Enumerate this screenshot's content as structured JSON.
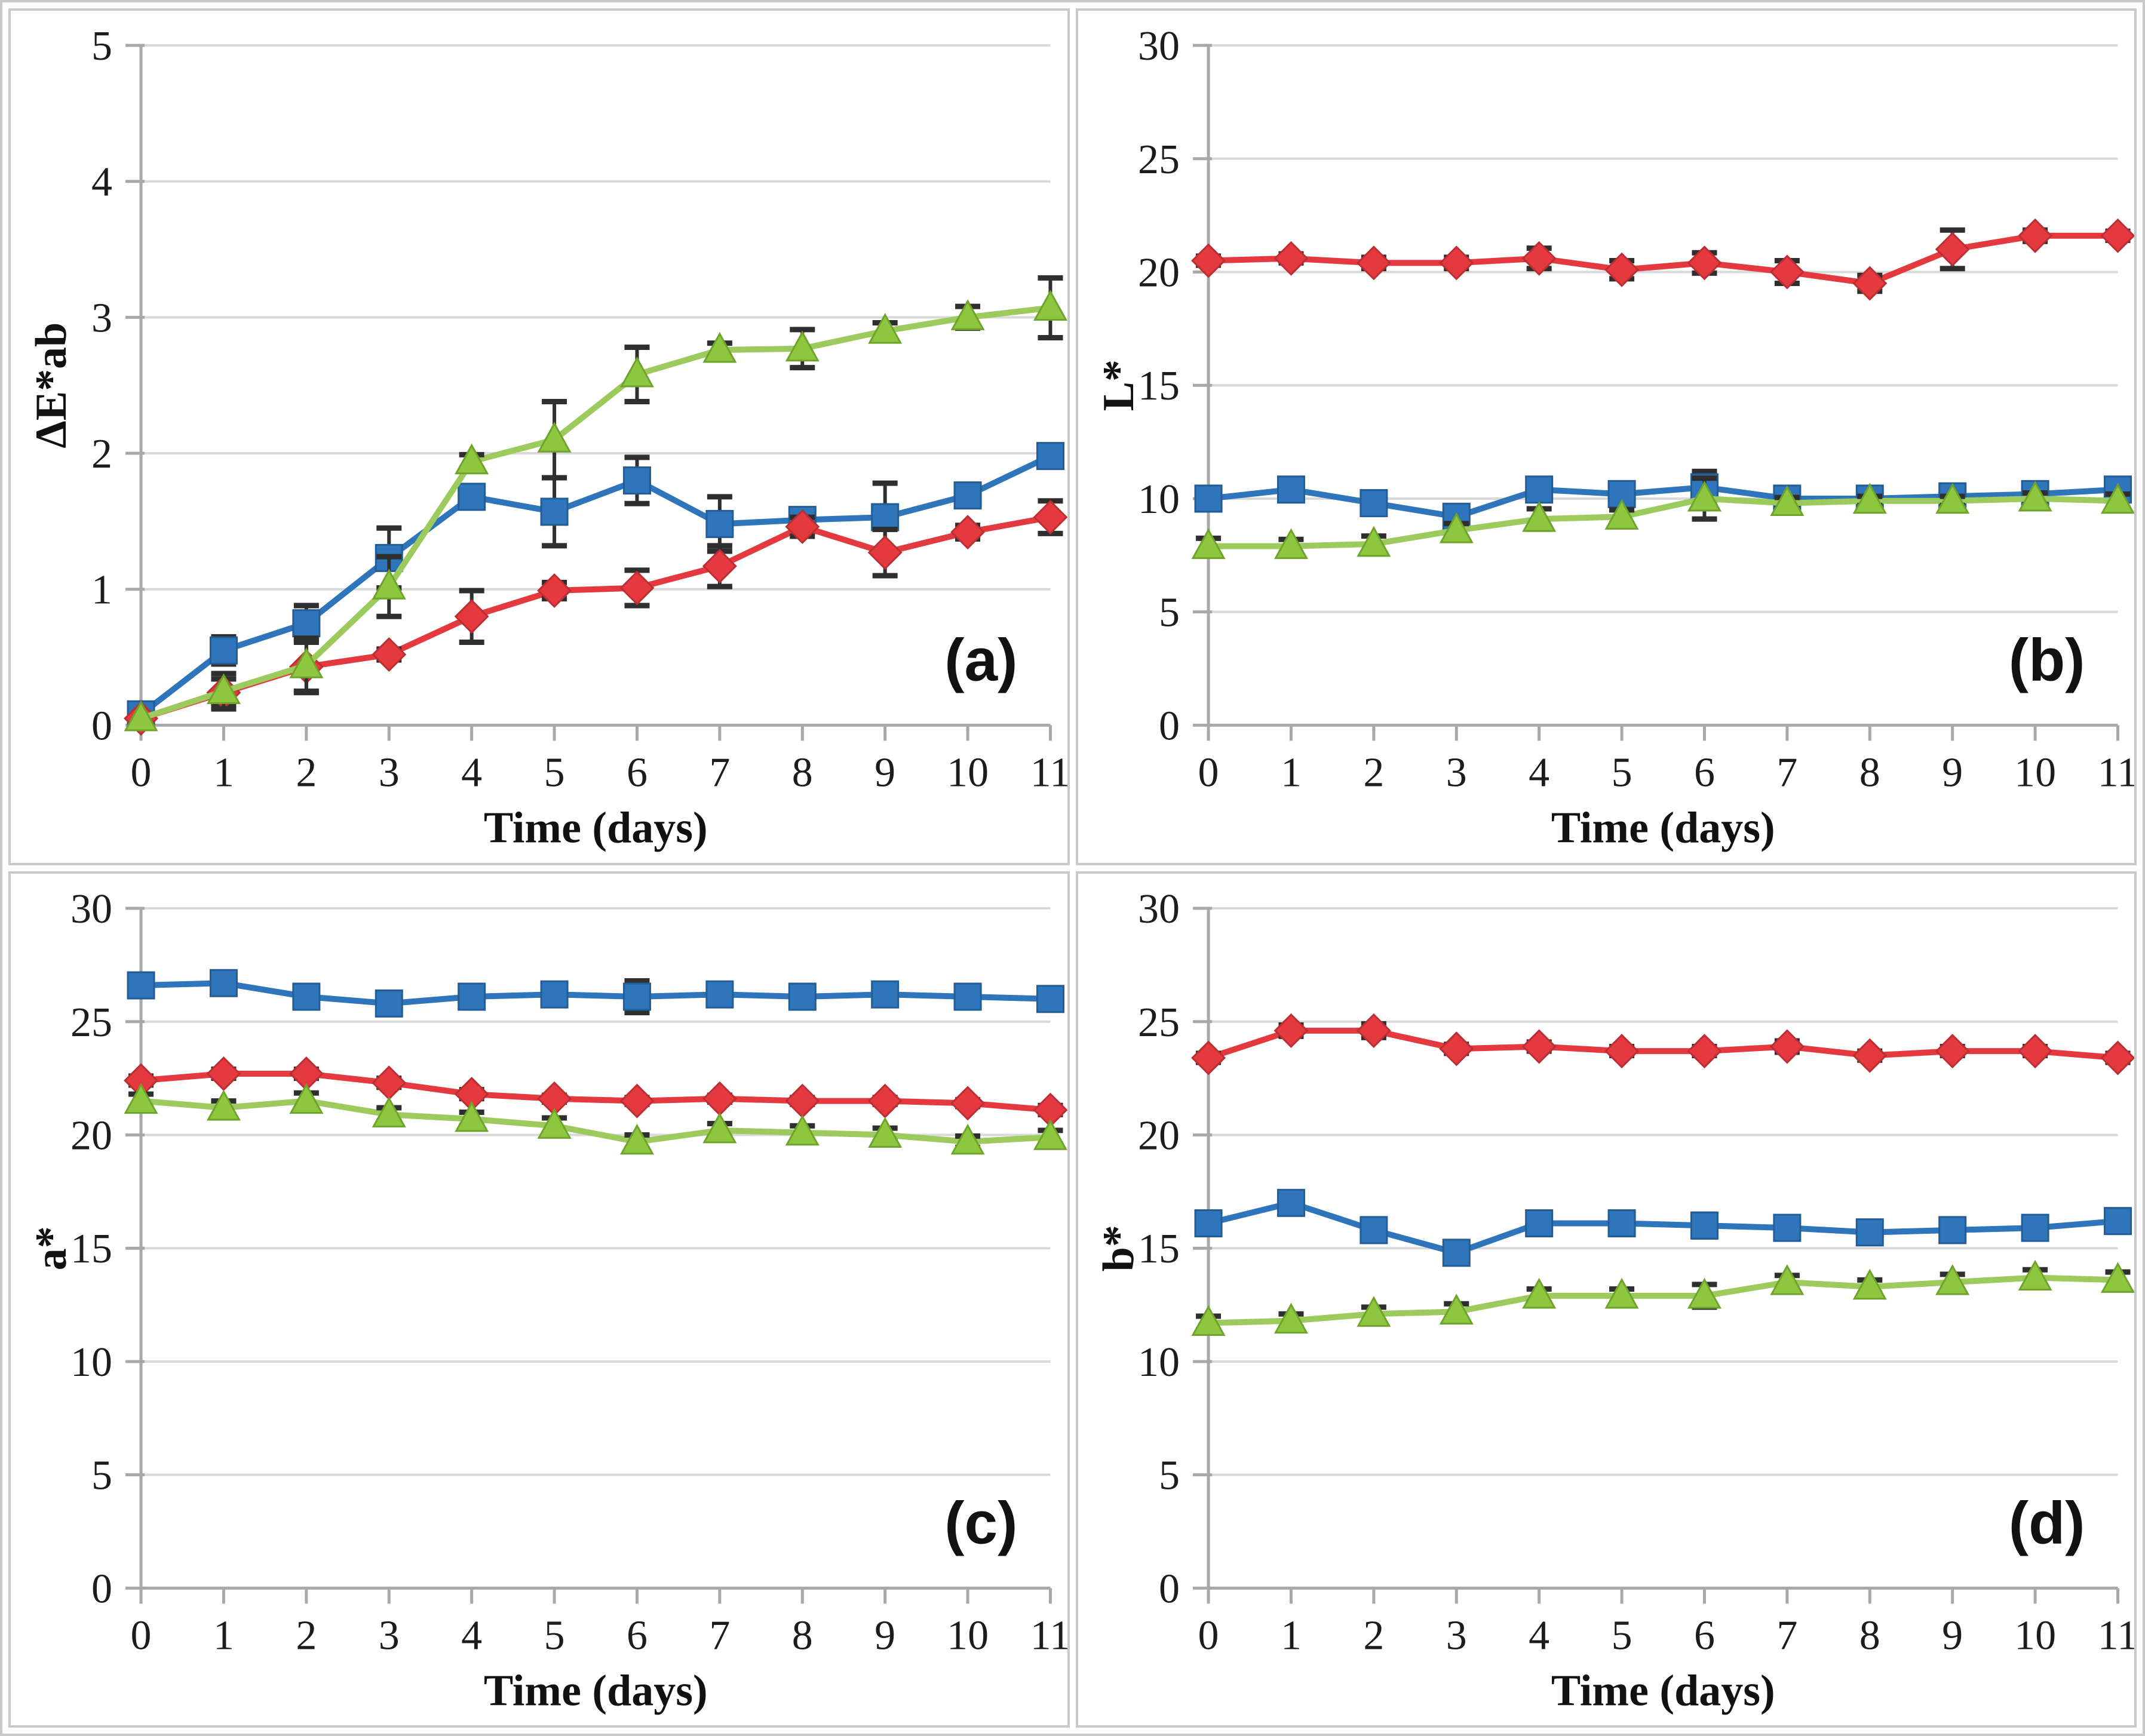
{
  "figure": {
    "panels": [
      "a",
      "b",
      "c",
      "d"
    ],
    "background": "#ffffff",
    "border_color": "#c9c9c9"
  },
  "colors": {
    "blue": "#2e75bb",
    "blue_edge": "#245d96",
    "red": "#e53940",
    "red_edge": "#bb2e34",
    "green": "#8dc63f",
    "green_edge": "#6fa32c",
    "green_line": "#9cca5d",
    "gridline": "#d9d9d9",
    "axis": "#a8a8a8",
    "error_bar": "#2f2f2f",
    "text": "#1c1c1c"
  },
  "chart_data": [
    {
      "id": "a",
      "type": "line",
      "panel_label": "(a)",
      "xlabel": "Time (days)",
      "ylabel": "ΔE*ab",
      "x": [
        0,
        1,
        2,
        3,
        4,
        5,
        6,
        7,
        8,
        9,
        10,
        11
      ],
      "xlim": [
        0,
        11
      ],
      "ylim": [
        0,
        5
      ],
      "ytick_step": 1,
      "grid": true,
      "legend": "none",
      "series": [
        {
          "name": "blue-squares",
          "marker": "square",
          "color": "blue",
          "line_color": "blue",
          "values": [
            0.08,
            0.55,
            0.75,
            1.23,
            1.68,
            1.57,
            1.8,
            1.48,
            1.51,
            1.53,
            1.69,
            1.98
          ],
          "errors": [
            0,
            0.1,
            0.13,
            0.22,
            0.04,
            0.25,
            0.17,
            0.2,
            0.06,
            0.25,
            0.08,
            0
          ]
        },
        {
          "name": "red-diamonds",
          "marker": "diamond",
          "color": "red",
          "line_color": "red",
          "values": [
            0.05,
            0.24,
            0.43,
            0.52,
            0.8,
            0.99,
            1.01,
            1.17,
            1.46,
            1.27,
            1.42,
            1.53
          ],
          "errors": [
            0,
            0.1,
            0.18,
            0.04,
            0.19,
            0.06,
            0.13,
            0.15,
            0.07,
            0.17,
            0.05,
            0.12
          ]
        },
        {
          "name": "green-triangles",
          "marker": "triangle",
          "color": "green",
          "line_color": "green_line",
          "values": [
            0.05,
            0.25,
            0.44,
            1.02,
            1.94,
            2.1,
            2.58,
            2.76,
            2.77,
            2.9,
            3.0,
            3.07
          ],
          "errors": [
            0,
            0.13,
            0.2,
            0.22,
            0.05,
            0.28,
            0.2,
            0.05,
            0.14,
            0.06,
            0.08,
            0.22
          ]
        }
      ]
    },
    {
      "id": "b",
      "type": "line",
      "panel_label": "(b)",
      "xlabel": "Time (days)",
      "ylabel": "L*",
      "x": [
        0,
        1,
        2,
        3,
        4,
        5,
        6,
        7,
        8,
        9,
        10,
        11
      ],
      "xlim": [
        0,
        11
      ],
      "ylim": [
        0,
        30
      ],
      "ytick_step": 5,
      "grid": true,
      "legend": "none",
      "series": [
        {
          "name": "blue-squares",
          "marker": "square",
          "color": "blue",
          "line_color": "blue",
          "values": [
            10.0,
            10.4,
            9.8,
            9.2,
            10.4,
            10.2,
            10.5,
            10.0,
            10.0,
            10.1,
            10.2,
            10.4
          ],
          "errors": [
            0.35,
            0.3,
            0.3,
            0.35,
            0.35,
            0.35,
            0.7,
            0.25,
            0.2,
            0.25,
            0.2,
            0.25
          ]
        },
        {
          "name": "red-diamonds",
          "marker": "diamond",
          "color": "red",
          "line_color": "red",
          "values": [
            20.5,
            20.6,
            20.4,
            20.4,
            20.6,
            20.1,
            20.4,
            20.0,
            19.5,
            21.0,
            21.6,
            21.6
          ],
          "errors": [
            0.2,
            0.2,
            0.25,
            0.25,
            0.45,
            0.4,
            0.45,
            0.5,
            0.35,
            0.85,
            0.25,
            0.2
          ]
        },
        {
          "name": "green-triangles",
          "marker": "triangle",
          "color": "green",
          "line_color": "green_line",
          "values": [
            7.9,
            7.9,
            8.0,
            8.6,
            9.1,
            9.2,
            10.0,
            9.8,
            9.9,
            9.9,
            10.0,
            9.9
          ],
          "errors": [
            0.35,
            0.3,
            0.35,
            0.3,
            0.45,
            0.3,
            0.9,
            0.25,
            0.2,
            0.2,
            0.25,
            0.3
          ]
        }
      ]
    },
    {
      "id": "c",
      "type": "line",
      "panel_label": "(c)",
      "xlabel": "Time (days)",
      "ylabel": "a*",
      "x": [
        0,
        1,
        2,
        3,
        4,
        5,
        6,
        7,
        8,
        9,
        10,
        11
      ],
      "xlim": [
        0,
        11
      ],
      "ylim": [
        0,
        30
      ],
      "ytick_step": 5,
      "grid": true,
      "legend": "none",
      "series": [
        {
          "name": "blue-squares",
          "marker": "square",
          "color": "blue",
          "line_color": "blue",
          "values": [
            26.6,
            26.7,
            26.1,
            25.8,
            26.1,
            26.2,
            26.1,
            26.2,
            26.1,
            26.2,
            26.1,
            26.0
          ],
          "errors": [
            0.2,
            0.25,
            0.2,
            0.2,
            0.3,
            0.25,
            0.7,
            0.2,
            0.2,
            0.25,
            0.25,
            0.2
          ]
        },
        {
          "name": "red-diamonds",
          "marker": "diamond",
          "color": "red",
          "line_color": "red",
          "values": [
            22.4,
            22.7,
            22.7,
            22.3,
            21.8,
            21.6,
            21.5,
            21.6,
            21.5,
            21.5,
            21.4,
            21.1
          ],
          "errors": [
            0.2,
            0.2,
            0.2,
            0.2,
            0.2,
            0.15,
            0.15,
            0.15,
            0.15,
            0.15,
            0.15,
            0.2
          ]
        },
        {
          "name": "green-triangles",
          "marker": "triangle",
          "color": "green",
          "line_color": "green_line",
          "values": [
            21.5,
            21.2,
            21.5,
            20.9,
            20.7,
            20.4,
            19.7,
            20.2,
            20.1,
            20.0,
            19.7,
            19.9
          ],
          "errors": [
            0.3,
            0.3,
            0.35,
            0.3,
            0.3,
            0.35,
            0.3,
            0.3,
            0.3,
            0.3,
            0.25,
            0.3
          ]
        }
      ]
    },
    {
      "id": "d",
      "type": "line",
      "panel_label": "(d)",
      "xlabel": "Time (days)",
      "ylabel": "b*",
      "x": [
        0,
        1,
        2,
        3,
        4,
        5,
        6,
        7,
        8,
        9,
        10,
        11
      ],
      "xlim": [
        0,
        11
      ],
      "ylim": [
        0,
        30
      ],
      "ytick_step": 5,
      "grid": true,
      "legend": "none",
      "series": [
        {
          "name": "blue-squares",
          "marker": "square",
          "color": "blue",
          "line_color": "blue",
          "values": [
            16.1,
            17.0,
            15.8,
            14.8,
            16.1,
            16.1,
            16.0,
            15.9,
            15.7,
            15.8,
            15.9,
            16.2
          ],
          "errors": [
            0.25,
            0.3,
            0.25,
            0.3,
            0.3,
            0.25,
            0.5,
            0.25,
            0.3,
            0.25,
            0.25,
            0.3
          ]
        },
        {
          "name": "red-diamonds",
          "marker": "diamond",
          "color": "red",
          "line_color": "red",
          "values": [
            23.4,
            24.6,
            24.6,
            23.8,
            23.9,
            23.7,
            23.7,
            23.9,
            23.5,
            23.7,
            23.7,
            23.4
          ],
          "errors": [
            0.2,
            0.25,
            0.3,
            0.2,
            0.2,
            0.2,
            0.2,
            0.25,
            0.2,
            0.2,
            0.2,
            0.2
          ]
        },
        {
          "name": "green-triangles",
          "marker": "triangle",
          "color": "green",
          "line_color": "green_line",
          "values": [
            11.7,
            11.8,
            12.1,
            12.2,
            12.9,
            12.9,
            12.9,
            13.5,
            13.3,
            13.5,
            13.7,
            13.6
          ],
          "errors": [
            0.3,
            0.3,
            0.3,
            0.35,
            0.3,
            0.3,
            0.5,
            0.3,
            0.3,
            0.35,
            0.35,
            0.35
          ]
        }
      ]
    }
  ]
}
